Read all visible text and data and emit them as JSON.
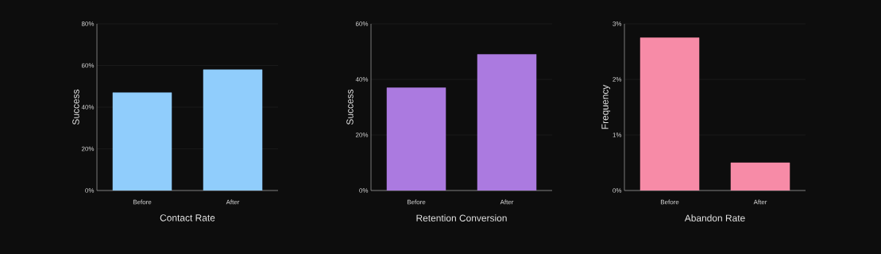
{
  "chart_data": [
    {
      "type": "bar",
      "xlabel": "Contact Rate",
      "ylabel": "Success",
      "categories": [
        "Before",
        "After"
      ],
      "values": [
        47,
        58
      ],
      "color": "#90cdfc",
      "ylim": [
        0,
        80
      ],
      "yticks": [
        {
          "value": 0,
          "label": "0%"
        },
        {
          "value": 20,
          "label": "20%"
        },
        {
          "value": 40,
          "label": "40%"
        },
        {
          "value": 60,
          "label": "60%"
        },
        {
          "value": 80,
          "label": "80%"
        }
      ],
      "grid": "y"
    },
    {
      "type": "bar",
      "xlabel": "Retention Conversion",
      "ylabel": "Success",
      "categories": [
        "Before",
        "After"
      ],
      "values": [
        37,
        49
      ],
      "color": "#ab7ae0",
      "ylim": [
        0,
        60
      ],
      "yticks": [
        {
          "value": 0,
          "label": "0%"
        },
        {
          "value": 20,
          "label": "20%"
        },
        {
          "value": 40,
          "label": "40%"
        },
        {
          "value": 60,
          "label": "60%"
        }
      ],
      "grid": "y"
    },
    {
      "type": "bar",
      "xlabel": "Abandon Rate",
      "ylabel": "Frequency",
      "categories": [
        "Before",
        "After"
      ],
      "values": [
        2.75,
        0.5
      ],
      "color": "#f78ba7",
      "ylim": [
        0,
        3
      ],
      "yticks": [
        {
          "value": 0,
          "label": "0%"
        },
        {
          "value": 1,
          "label": "1%"
        },
        {
          "value": 2,
          "label": "2%"
        },
        {
          "value": 3,
          "label": "3%"
        }
      ],
      "grid": "y"
    }
  ]
}
